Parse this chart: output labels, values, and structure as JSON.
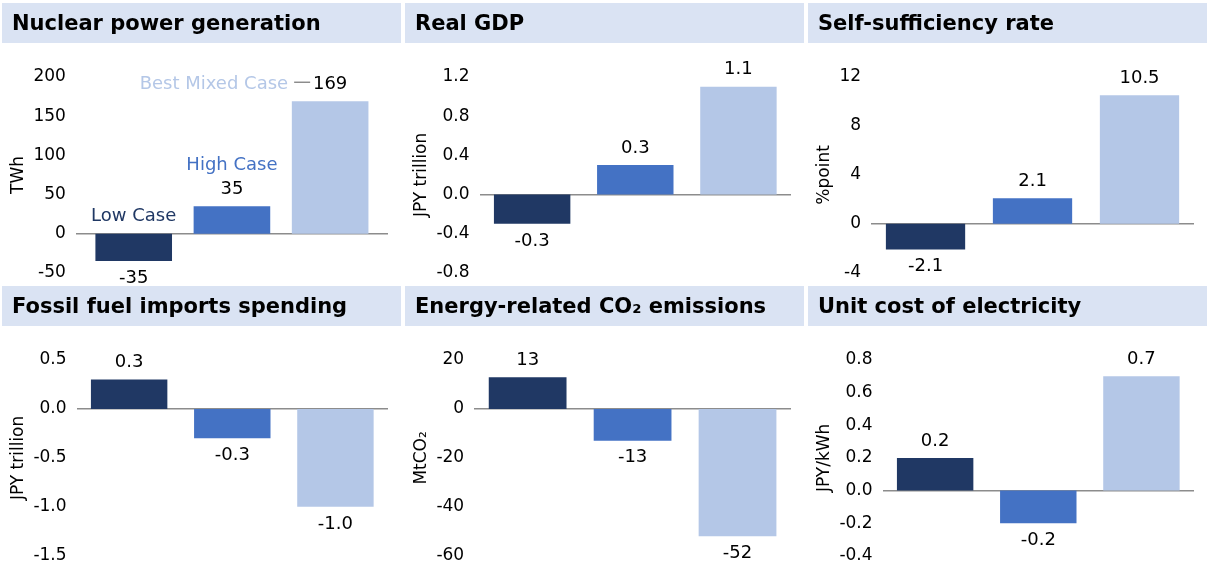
{
  "chart_data": [
    {
      "type": "bar",
      "title": "Nuclear power generation",
      "ylabel": "TWh",
      "categories": [
        null
      ],
      "series": [
        {
          "name": "Low Case",
          "color": "#203864",
          "values": [
            -35
          ],
          "value_labels": [
            "-35"
          ]
        },
        {
          "name": "High Case",
          "color": "#4472c4",
          "values": [
            35
          ],
          "value_labels": [
            "35"
          ]
        },
        {
          "name": "Best Mixed Case",
          "color": "#b4c7e7",
          "values": [
            169
          ],
          "value_labels": [
            "169"
          ]
        }
      ],
      "ylim": [
        -50,
        200
      ],
      "yticks": [
        -50,
        0,
        50,
        100,
        150,
        200
      ],
      "legend": false,
      "tick_labels": "y"
    },
    {
      "type": "bar",
      "title": "Real GDP",
      "ylabel": "JPY trillion",
      "categories": [
        null,
        null,
        null
      ],
      "values": [
        -0.3,
        0.3,
        1.1
      ],
      "colors": [
        "#203864",
        "#4472c4",
        "#b4c7e7"
      ],
      "value_labels": [
        "-0.3",
        "0.3",
        "1.1"
      ],
      "ylim": [
        -0.8,
        1.2
      ],
      "yticks": [
        {
          "value": -0.8,
          "label": "-0.8"
        },
        {
          "value": -0.4,
          "label": "-0.4"
        },
        {
          "value": 0,
          "label": "0.0"
        },
        {
          "value": 0.4,
          "label": "0.4"
        },
        {
          "value": 0.8,
          "label": "0.8"
        },
        {
          "value": 1.2,
          "label": "1.2"
        }
      ],
      "legend": false,
      "tick_labels": "y"
    },
    {
      "type": "bar",
      "title": "Self-sufficiency rate",
      "ylabel": "%point",
      "categories": [
        null,
        null,
        null
      ],
      "values": [
        -2.1,
        2.1,
        10.5
      ],
      "colors": [
        "#203864",
        "#4472c4",
        "#b4c7e7"
      ],
      "value_labels": [
        "-2.1",
        "2.1",
        "10.5"
      ],
      "ylim": [
        -4,
        12
      ],
      "yticks": [
        -4,
        0,
        4,
        8,
        12
      ],
      "legend": false,
      "tick_labels": "y"
    },
    {
      "type": "bar",
      "title": "Fossil fuel imports spending",
      "ylabel": "JPY trillion",
      "categories": [
        null,
        null,
        null
      ],
      "values": [
        0.3,
        -0.3,
        -1.0
      ],
      "colors": [
        "#203864",
        "#4472c4",
        "#b4c7e7"
      ],
      "value_labels": [
        "0.3",
        "-0.3",
        "-1.0"
      ],
      "ylim": [
        -1.5,
        0.5
      ],
      "yticks": [
        {
          "value": -1.5,
          "label": "-1.5"
        },
        {
          "value": -1,
          "label": "-1.0"
        },
        {
          "value": -0.5,
          "label": "-0.5"
        },
        {
          "value": 0,
          "label": "0.0"
        },
        {
          "value": 0.5,
          "label": "0.5"
        }
      ],
      "legend": false,
      "tick_labels": "y"
    },
    {
      "type": "bar",
      "title": "Energy-related CO₂ emissions",
      "ylabel": "MtCO₂",
      "categories": [
        null,
        null,
        null
      ],
      "values": [
        13,
        -13,
        -52
      ],
      "colors": [
        "#203864",
        "#4472c4",
        "#b4c7e7"
      ],
      "value_labels": [
        "13",
        "-13",
        "-52"
      ],
      "ylim": [
        -60,
        20
      ],
      "yticks": [
        -60,
        -40,
        -20,
        0,
        20
      ],
      "legend": false,
      "tick_labels": "y"
    },
    {
      "type": "bar",
      "title": "Unit cost of electricity",
      "ylabel": "JPY/kWh",
      "categories": [
        null,
        null,
        null
      ],
      "values": [
        0.2,
        -0.2,
        0.7
      ],
      "colors": [
        "#203864",
        "#4472c4",
        "#b4c7e7"
      ],
      "value_labels": [
        "0.2",
        "-0.2",
        "0.7"
      ],
      "ylim": [
        -0.4,
        0.8
      ],
      "yticks": [
        {
          "value": -0.4,
          "label": "-0.4"
        },
        {
          "value": -0.2,
          "label": "-0.2"
        },
        {
          "value": 0,
          "label": "0.0"
        },
        {
          "value": 0.2,
          "label": "0.2"
        },
        {
          "value": 0.4,
          "label": "0.4"
        },
        {
          "value": 0.6,
          "label": "0.6"
        },
        {
          "value": 0.8,
          "label": "0.8"
        }
      ],
      "legend": false,
      "tick_labels": "y"
    }
  ]
}
